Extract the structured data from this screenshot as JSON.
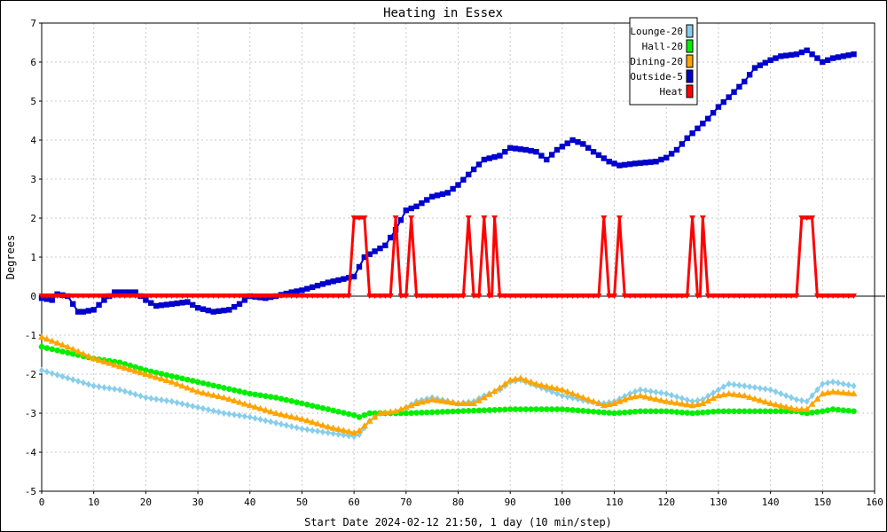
{
  "chart_data": {
    "type": "line",
    "title": "Heating in Essex",
    "xlabel": "Start Date 2024-02-12 21:50, 1 day (10 min/step)",
    "ylabel": "Degrees",
    "xlim": [
      0,
      160
    ],
    "ylim": [
      -5,
      7
    ],
    "x_ticks": [
      0,
      10,
      20,
      30,
      40,
      50,
      60,
      70,
      80,
      90,
      100,
      110,
      120,
      130,
      140,
      150,
      160
    ],
    "y_ticks": [
      -5,
      -4,
      -3,
      -2,
      -1,
      0,
      1,
      2,
      3,
      4,
      5,
      6,
      7
    ],
    "grid": true,
    "legend_position": "top-right",
    "series": [
      {
        "name": "Lounge-20",
        "color": "#87ceeb",
        "marker": "diamond",
        "points": [
          [
            0,
            -1.9
          ],
          [
            5,
            -2.1
          ],
          [
            10,
            -2.3
          ],
          [
            15,
            -2.4
          ],
          [
            20,
            -2.6
          ],
          [
            25,
            -2.7
          ],
          [
            30,
            -2.85
          ],
          [
            35,
            -3.0
          ],
          [
            40,
            -3.1
          ],
          [
            45,
            -3.25
          ],
          [
            50,
            -3.4
          ],
          [
            55,
            -3.5
          ],
          [
            60,
            -3.6
          ],
          [
            61,
            -3.55
          ],
          [
            63,
            -3.2
          ],
          [
            65,
            -3.0
          ],
          [
            68,
            -3.0
          ],
          [
            72,
            -2.7
          ],
          [
            75,
            -2.6
          ],
          [
            80,
            -2.75
          ],
          [
            83,
            -2.7
          ],
          [
            85,
            -2.55
          ],
          [
            88,
            -2.4
          ],
          [
            90,
            -2.2
          ],
          [
            92,
            -2.15
          ],
          [
            95,
            -2.3
          ],
          [
            100,
            -2.55
          ],
          [
            105,
            -2.7
          ],
          [
            108,
            -2.75
          ],
          [
            110,
            -2.7
          ],
          [
            113,
            -2.5
          ],
          [
            115,
            -2.4
          ],
          [
            120,
            -2.5
          ],
          [
            125,
            -2.7
          ],
          [
            127,
            -2.65
          ],
          [
            130,
            -2.4
          ],
          [
            132,
            -2.25
          ],
          [
            135,
            -2.3
          ],
          [
            140,
            -2.4
          ],
          [
            145,
            -2.65
          ],
          [
            147,
            -2.7
          ],
          [
            150,
            -2.25
          ],
          [
            152,
            -2.2
          ],
          [
            154,
            -2.25
          ],
          [
            156,
            -2.3
          ]
        ]
      },
      {
        "name": "Hall-20",
        "color": "#00ee00",
        "marker": "circle",
        "points": [
          [
            0,
            -1.3
          ],
          [
            5,
            -1.45
          ],
          [
            10,
            -1.6
          ],
          [
            15,
            -1.7
          ],
          [
            20,
            -1.9
          ],
          [
            25,
            -2.05
          ],
          [
            30,
            -2.2
          ],
          [
            35,
            -2.35
          ],
          [
            40,
            -2.5
          ],
          [
            45,
            -2.6
          ],
          [
            50,
            -2.75
          ],
          [
            55,
            -2.9
          ],
          [
            60,
            -3.05
          ],
          [
            61,
            -3.1
          ],
          [
            63,
            -3.0
          ],
          [
            70,
            -3.0
          ],
          [
            80,
            -2.95
          ],
          [
            90,
            -2.9
          ],
          [
            95,
            -2.9
          ],
          [
            100,
            -2.9
          ],
          [
            105,
            -2.95
          ],
          [
            110,
            -3.0
          ],
          [
            115,
            -2.95
          ],
          [
            120,
            -2.95
          ],
          [
            125,
            -3.0
          ],
          [
            130,
            -2.95
          ],
          [
            135,
            -2.95
          ],
          [
            140,
            -2.95
          ],
          [
            145,
            -2.95
          ],
          [
            147,
            -3.0
          ],
          [
            150,
            -2.95
          ],
          [
            152,
            -2.9
          ],
          [
            156,
            -2.95
          ]
        ]
      },
      {
        "name": "Dining-20",
        "color": "#ffa500",
        "marker": "triangle",
        "points": [
          [
            0,
            -1.05
          ],
          [
            5,
            -1.3
          ],
          [
            10,
            -1.6
          ],
          [
            15,
            -1.8
          ],
          [
            20,
            -2.0
          ],
          [
            25,
            -2.2
          ],
          [
            30,
            -2.45
          ],
          [
            35,
            -2.6
          ],
          [
            40,
            -2.8
          ],
          [
            45,
            -3.0
          ],
          [
            50,
            -3.15
          ],
          [
            55,
            -3.35
          ],
          [
            60,
            -3.5
          ],
          [
            61,
            -3.45
          ],
          [
            63,
            -3.2
          ],
          [
            65,
            -3.0
          ],
          [
            68,
            -2.95
          ],
          [
            72,
            -2.75
          ],
          [
            75,
            -2.65
          ],
          [
            80,
            -2.75
          ],
          [
            83,
            -2.75
          ],
          [
            85,
            -2.6
          ],
          [
            88,
            -2.35
          ],
          [
            90,
            -2.15
          ],
          [
            92,
            -2.1
          ],
          [
            95,
            -2.25
          ],
          [
            100,
            -2.4
          ],
          [
            105,
            -2.65
          ],
          [
            108,
            -2.8
          ],
          [
            110,
            -2.75
          ],
          [
            113,
            -2.6
          ],
          [
            115,
            -2.55
          ],
          [
            120,
            -2.7
          ],
          [
            125,
            -2.8
          ],
          [
            127,
            -2.75
          ],
          [
            130,
            -2.55
          ],
          [
            132,
            -2.5
          ],
          [
            135,
            -2.55
          ],
          [
            140,
            -2.75
          ],
          [
            145,
            -2.9
          ],
          [
            147,
            -2.9
          ],
          [
            150,
            -2.5
          ],
          [
            152,
            -2.45
          ],
          [
            156,
            -2.5
          ]
        ]
      },
      {
        "name": "Outside-5",
        "color": "#0000cc",
        "marker": "square",
        "points": [
          [
            0,
            -0.05
          ],
          [
            2,
            -0.1
          ],
          [
            3,
            0.05
          ],
          [
            5,
            0.0
          ],
          [
            7,
            -0.4
          ],
          [
            8,
            -0.4
          ],
          [
            10,
            -0.35
          ],
          [
            12,
            -0.1
          ],
          [
            14,
            0.1
          ],
          [
            18,
            0.1
          ],
          [
            20,
            -0.1
          ],
          [
            22,
            -0.25
          ],
          [
            25,
            -0.2
          ],
          [
            28,
            -0.15
          ],
          [
            30,
            -0.3
          ],
          [
            33,
            -0.4
          ],
          [
            36,
            -0.35
          ],
          [
            38,
            -0.2
          ],
          [
            40,
            0.0
          ],
          [
            43,
            -0.05
          ],
          [
            45,
            0.0
          ],
          [
            48,
            0.1
          ],
          [
            50,
            0.15
          ],
          [
            55,
            0.35
          ],
          [
            60,
            0.5
          ],
          [
            62,
            1.0
          ],
          [
            64,
            1.15
          ],
          [
            66,
            1.3
          ],
          [
            68,
            1.7
          ],
          [
            70,
            2.2
          ],
          [
            72,
            2.3
          ],
          [
            75,
            2.55
          ],
          [
            78,
            2.65
          ],
          [
            80,
            2.85
          ],
          [
            83,
            3.25
          ],
          [
            85,
            3.5
          ],
          [
            88,
            3.6
          ],
          [
            90,
            3.8
          ],
          [
            93,
            3.75
          ],
          [
            95,
            3.7
          ],
          [
            97,
            3.5
          ],
          [
            99,
            3.75
          ],
          [
            102,
            4.0
          ],
          [
            104,
            3.9
          ],
          [
            106,
            3.7
          ],
          [
            109,
            3.45
          ],
          [
            111,
            3.35
          ],
          [
            114,
            3.4
          ],
          [
            118,
            3.45
          ],
          [
            120,
            3.55
          ],
          [
            122,
            3.75
          ],
          [
            124,
            4.05
          ],
          [
            126,
            4.3
          ],
          [
            128,
            4.55
          ],
          [
            130,
            4.85
          ],
          [
            132,
            5.1
          ],
          [
            135,
            5.5
          ],
          [
            137,
            5.85
          ],
          [
            140,
            6.05
          ],
          [
            142,
            6.15
          ],
          [
            145,
            6.2
          ],
          [
            147,
            6.3
          ],
          [
            148,
            6.2
          ],
          [
            150,
            6.0
          ],
          [
            152,
            6.1
          ],
          [
            154,
            6.15
          ],
          [
            156,
            6.2
          ]
        ]
      },
      {
        "name": "Heat",
        "color": "#ff0000",
        "marker": "triangle-down",
        "points": [
          [
            0,
            0
          ],
          [
            59,
            0
          ],
          [
            60,
            2
          ],
          [
            62,
            2
          ],
          [
            63,
            0
          ],
          [
            67,
            0
          ],
          [
            68,
            2
          ],
          [
            69,
            0
          ],
          [
            70,
            0
          ],
          [
            71,
            2
          ],
          [
            72,
            0
          ],
          [
            81,
            0
          ],
          [
            82,
            2
          ],
          [
            83,
            0
          ],
          [
            84,
            0
          ],
          [
            85,
            2
          ],
          [
            86,
            0
          ],
          [
            86.5,
            0
          ],
          [
            87,
            2
          ],
          [
            88,
            0
          ],
          [
            107,
            0
          ],
          [
            108,
            2
          ],
          [
            109,
            0
          ],
          [
            110,
            0
          ],
          [
            111,
            2
          ],
          [
            112,
            0
          ],
          [
            124,
            0
          ],
          [
            125,
            2
          ],
          [
            126,
            0
          ],
          [
            126.5,
            0
          ],
          [
            127,
            2
          ],
          [
            128,
            0
          ],
          [
            145,
            0
          ],
          [
            146,
            2
          ],
          [
            148,
            2
          ],
          [
            149,
            0
          ],
          [
            156,
            0
          ]
        ]
      }
    ]
  }
}
